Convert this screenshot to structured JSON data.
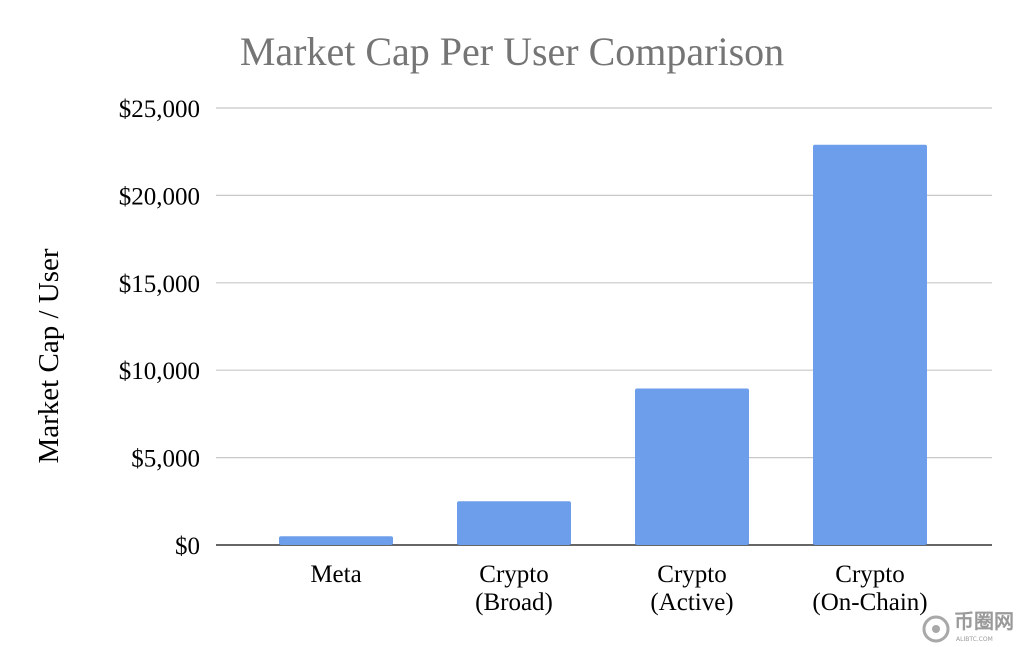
{
  "chart_data": {
    "type": "bar",
    "title": "Market Cap Per User Comparison",
    "xlabel": "",
    "ylabel": "Market Cap / User",
    "ylim": [
      0,
      25000
    ],
    "yticks": [
      0,
      5000,
      10000,
      15000,
      20000,
      25000
    ],
    "ytick_labels": [
      "$0",
      "$5,000",
      "$10,000",
      "$15,000",
      "$20,000",
      "$25,000"
    ],
    "grid": true,
    "categories": [
      [
        "Meta"
      ],
      [
        "Crypto",
        "(Broad)"
      ],
      [
        "Crypto",
        "(Active)"
      ],
      [
        "Crypto",
        "(On-Chain)"
      ]
    ],
    "values": [
      500,
      2500,
      8950,
      22900
    ],
    "bar_color": "#6d9eeb"
  },
  "watermark": {
    "text": "币圈网",
    "subtext": "ALIBTC.COM"
  }
}
